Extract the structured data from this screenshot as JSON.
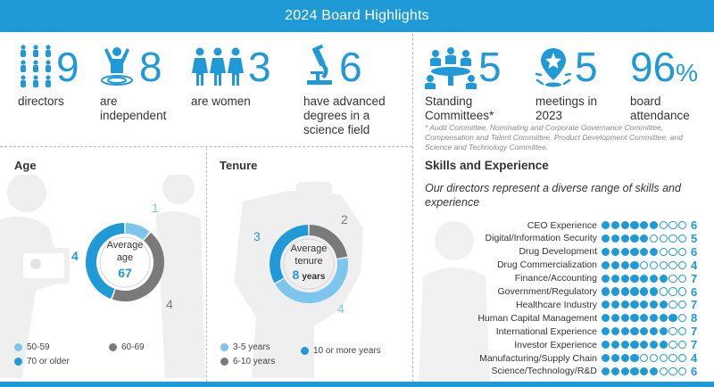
{
  "banner": {
    "title": "2024 Board Highlights"
  },
  "stats": [
    {
      "id": "directors",
      "number": "9",
      "label": "directors"
    },
    {
      "id": "independent",
      "number": "8",
      "label": "are independent"
    },
    {
      "id": "women",
      "number": "3",
      "label": "are women"
    },
    {
      "id": "science",
      "number": "6",
      "label": "have advanced degrees in a science field"
    },
    {
      "id": "committees",
      "number": "5",
      "label": "Standing Committees*"
    },
    {
      "id": "meetings",
      "number": "5",
      "label": "meetings in 2023"
    },
    {
      "id": "attendance",
      "number": "96",
      "unit": "%",
      "label": "board attendance"
    }
  ],
  "footnote": "* Audit Committee, Nominating and Corporate Governance Committee, Compensation and Talent Committee, Product Development Committee, and Science and Technology Committee.",
  "age": {
    "title": "Age",
    "center_line1": "Average",
    "center_line2": "age",
    "center_value": "67",
    "legend": [
      {
        "label": "50-59",
        "color": "#7cc6ee"
      },
      {
        "label": "60-69",
        "color": "#7a7a7a"
      },
      {
        "label": "70 or older",
        "color": "#1f9ad6"
      }
    ],
    "chart_data": {
      "type": "pie",
      "categories": [
        "50-59",
        "60-69",
        "70 or older"
      ],
      "values": [
        1,
        4,
        4
      ],
      "colors": [
        "#7cc6ee",
        "#7a7a7a",
        "#1f9ad6"
      ]
    }
  },
  "tenure": {
    "title": "Tenure",
    "center_line1": "Average",
    "center_line2": "tenure",
    "center_value": "8",
    "center_unit": "years",
    "legend": [
      {
        "label": "3-5 years",
        "color": "#7cc6ee"
      },
      {
        "label": "10 or more years",
        "color": "#1f9ad6"
      },
      {
        "label": "6-10 years",
        "color": "#7a7a7a"
      }
    ],
    "chart_data": {
      "type": "pie",
      "categories": [
        "6-10 years",
        "3-5 years",
        "10 or more years"
      ],
      "values": [
        2,
        4,
        3
      ],
      "colors": [
        "#7a7a7a",
        "#7cc6ee",
        "#1f9ad6"
      ]
    }
  },
  "skills": {
    "title": "Skills and Experience",
    "subtitle": "Our directors represent a diverse range of skills and experience",
    "max": 9,
    "items": [
      {
        "name": "CEO Experience",
        "count": 6
      },
      {
        "name": "Digital/Information Security",
        "count": 5
      },
      {
        "name": "Drug Development",
        "count": 6
      },
      {
        "name": "Drug Commercialization",
        "count": 4
      },
      {
        "name": "Finance/Accounting",
        "count": 7
      },
      {
        "name": "Government/Regulatory",
        "count": 6
      },
      {
        "name": "Healthcare Industry",
        "count": 7
      },
      {
        "name": "Human Capital Management",
        "count": 8
      },
      {
        "name": "International Experience",
        "count": 7
      },
      {
        "name": "Investor Experience",
        "count": 7
      },
      {
        "name": "Manufacturing/Supply Chain",
        "count": 4
      },
      {
        "name": "Science/Technology/R&D",
        "count": 6
      }
    ]
  }
}
